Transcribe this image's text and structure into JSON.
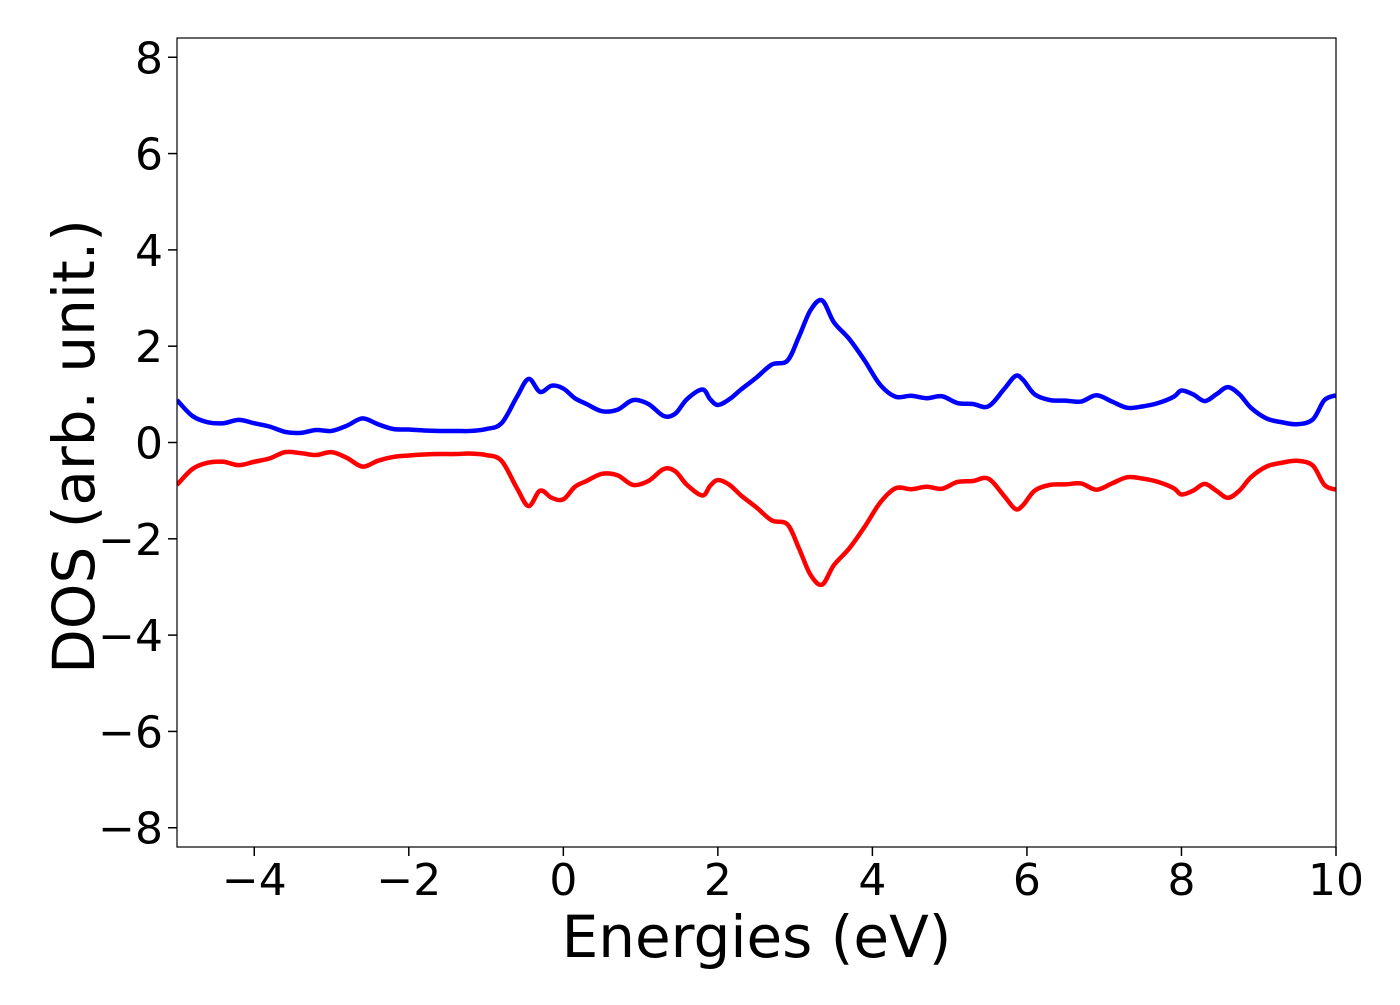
{
  "chart_data": {
    "type": "line",
    "title": "",
    "xlabel": "Energies (eV)",
    "ylabel": "DOS (arb. unit.)",
    "xlim": [
      -5,
      10
    ],
    "ylim": [
      -8.4,
      8.4
    ],
    "xticks": [
      -4,
      -2,
      0,
      2,
      4,
      6,
      8,
      10
    ],
    "yticks": [
      -8,
      -6,
      -4,
      -2,
      0,
      2,
      4,
      6,
      8
    ],
    "xtick_labels": [
      "−4",
      "−2",
      "0",
      "2",
      "4",
      "6",
      "8",
      "10"
    ],
    "ytick_labels": [
      "−8",
      "−6",
      "−4",
      "−2",
      "0",
      "2",
      "4",
      "6",
      "8"
    ],
    "grid": false,
    "legend": "none",
    "x": [
      -5.0,
      -4.8,
      -4.6,
      -4.4,
      -4.2,
      -4.0,
      -3.8,
      -3.6,
      -3.4,
      -3.2,
      -3.0,
      -2.8,
      -2.6,
      -2.4,
      -2.2,
      -2.0,
      -1.8,
      -1.6,
      -1.4,
      -1.2,
      -1.0,
      -0.8,
      -0.6,
      -0.45,
      -0.3,
      -0.15,
      0.0,
      0.15,
      0.3,
      0.5,
      0.7,
      0.9,
      1.1,
      1.3,
      1.45,
      1.6,
      1.8,
      1.9,
      2.0,
      2.15,
      2.3,
      2.5,
      2.7,
      2.9,
      3.05,
      3.2,
      3.35,
      3.5,
      3.7,
      3.9,
      4.1,
      4.3,
      4.5,
      4.7,
      4.9,
      5.1,
      5.3,
      5.5,
      5.7,
      5.85,
      5.95,
      6.1,
      6.3,
      6.5,
      6.7,
      6.9,
      7.1,
      7.3,
      7.5,
      7.7,
      7.9,
      8.0,
      8.15,
      8.3,
      8.45,
      8.6,
      8.75,
      8.9,
      9.1,
      9.3,
      9.5,
      9.7,
      9.85,
      10.0
    ],
    "series": [
      {
        "color": "#0000ff",
        "values": [
          0.88,
          0.55,
          0.42,
          0.4,
          0.47,
          0.4,
          0.33,
          0.22,
          0.2,
          0.26,
          0.24,
          0.35,
          0.5,
          0.38,
          0.28,
          0.27,
          0.25,
          0.24,
          0.24,
          0.24,
          0.28,
          0.4,
          0.95,
          1.32,
          1.05,
          1.18,
          1.12,
          0.92,
          0.8,
          0.65,
          0.68,
          0.88,
          0.8,
          0.55,
          0.6,
          0.9,
          1.1,
          0.9,
          0.78,
          0.9,
          1.1,
          1.35,
          1.62,
          1.7,
          2.2,
          2.75,
          2.95,
          2.5,
          2.15,
          1.7,
          1.2,
          0.95,
          0.97,
          0.92,
          0.96,
          0.82,
          0.8,
          0.75,
          1.1,
          1.38,
          1.3,
          1.0,
          0.88,
          0.87,
          0.85,
          0.98,
          0.85,
          0.72,
          0.75,
          0.82,
          0.95,
          1.08,
          1.0,
          0.86,
          1.0,
          1.15,
          1.0,
          0.72,
          0.5,
          0.42,
          0.38,
          0.48,
          0.88,
          0.98
        ]
      },
      {
        "color": "#ff0000",
        "values": [
          -0.88,
          -0.55,
          -0.42,
          -0.4,
          -0.47,
          -0.4,
          -0.33,
          -0.2,
          -0.22,
          -0.26,
          -0.2,
          -0.32,
          -0.5,
          -0.38,
          -0.3,
          -0.27,
          -0.25,
          -0.24,
          -0.24,
          -0.23,
          -0.26,
          -0.38,
          -0.95,
          -1.32,
          -1.0,
          -1.15,
          -1.18,
          -0.92,
          -0.8,
          -0.65,
          -0.68,
          -0.88,
          -0.8,
          -0.55,
          -0.6,
          -0.88,
          -1.1,
          -0.9,
          -0.78,
          -0.88,
          -1.1,
          -1.35,
          -1.62,
          -1.7,
          -2.2,
          -2.75,
          -2.95,
          -2.55,
          -2.2,
          -1.75,
          -1.25,
          -0.95,
          -0.97,
          -0.92,
          -0.96,
          -0.82,
          -0.8,
          -0.75,
          -1.1,
          -1.38,
          -1.3,
          -1.0,
          -0.88,
          -0.87,
          -0.85,
          -0.98,
          -0.85,
          -0.72,
          -0.75,
          -0.82,
          -0.95,
          -1.08,
          -1.0,
          -0.86,
          -1.0,
          -1.15,
          -1.0,
          -0.72,
          -0.5,
          -0.42,
          -0.38,
          -0.48,
          -0.88,
          -0.98
        ]
      }
    ]
  }
}
